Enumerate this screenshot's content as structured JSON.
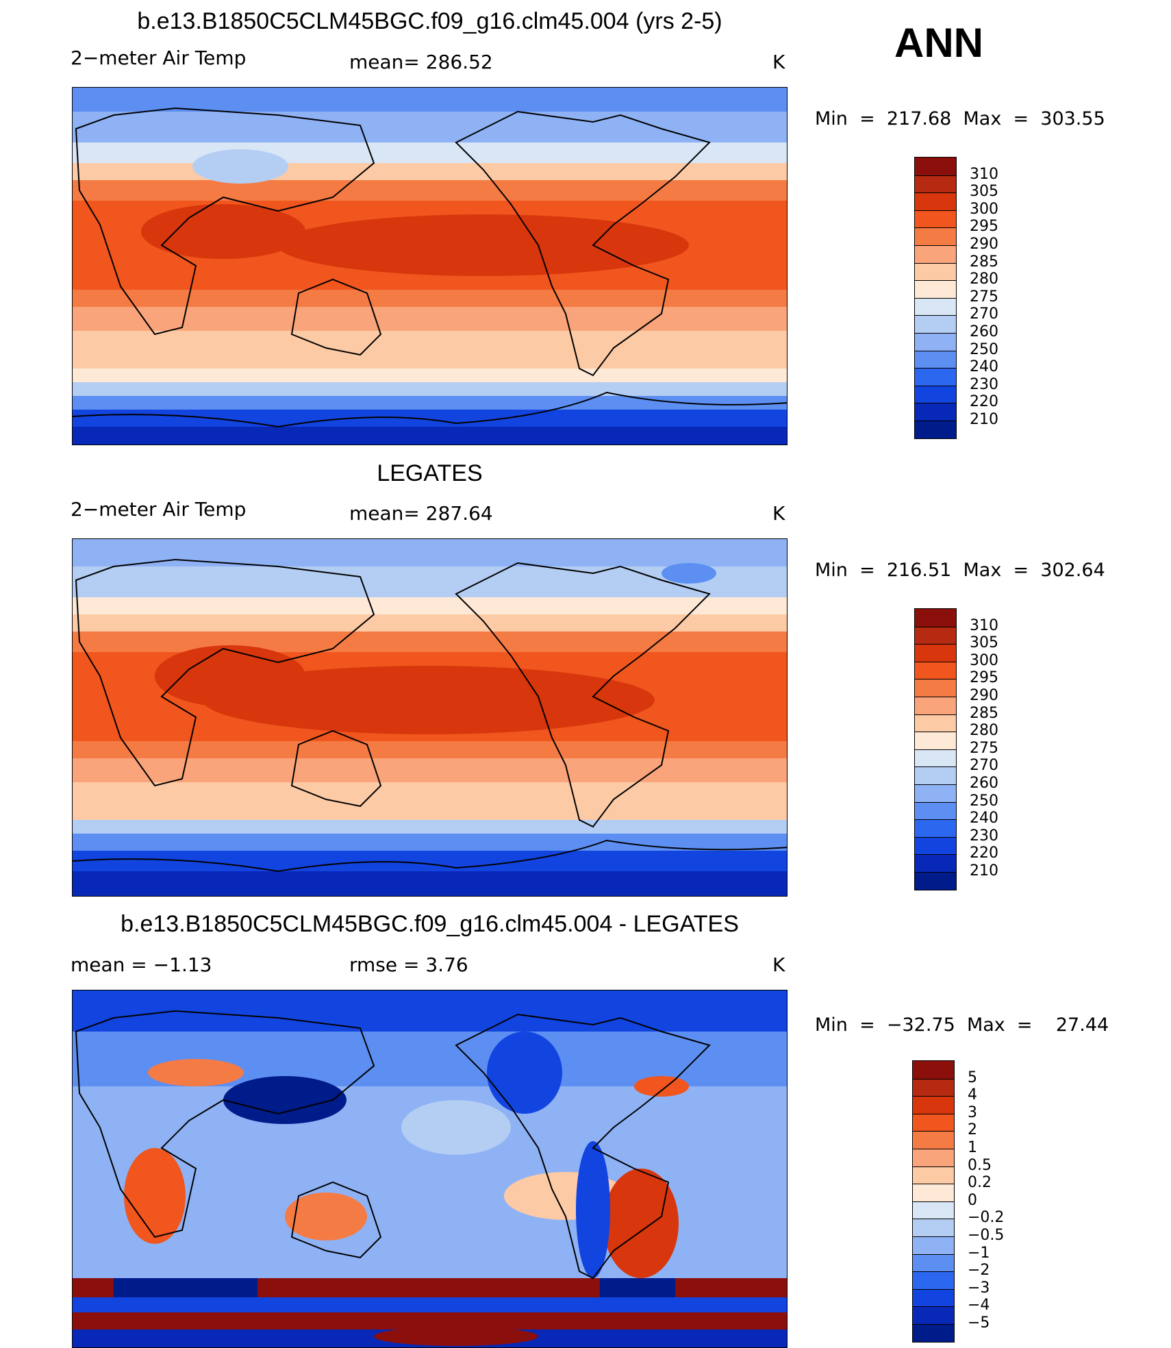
{
  "season": "ANN",
  "panels": [
    {
      "id": "model",
      "title": "b.e13.B1850C5CLM45BGC.f09_g16.clm45.004 (yrs 2-5)",
      "left_label": "2−meter Air Temp",
      "center_label": "mean=  286.52",
      "right_label": "K",
      "minmax": "Min  =  217.68  Max  =  303.55"
    },
    {
      "id": "obs",
      "title": "LEGATES",
      "left_label": "2−meter Air Temp",
      "center_label": "mean=  287.64",
      "right_label": "K",
      "minmax": "Min  =  216.51  Max  =  302.64"
    },
    {
      "id": "diff",
      "title": "b.e13.B1850C5CLM45BGC.f09_g16.clm45.004 - LEGATES",
      "left_label": "mean  =    −1.13",
      "center_label": "rmse  =     3.76",
      "right_label": "K",
      "minmax": "Min  =  −32.75  Max  =    27.44"
    }
  ],
  "legends": {
    "abs": {
      "labels": [
        "310",
        "305",
        "300",
        "295",
        "290",
        "285",
        "280",
        "275",
        "270",
        "260",
        "250",
        "240",
        "230",
        "220",
        "210"
      ],
      "colors": [
        "#8b0f0a",
        "#b52a10",
        "#d8360c",
        "#f0561d",
        "#f57b45",
        "#f9a47a",
        "#fdcaa6",
        "#fde9d6",
        "#d8e6f6",
        "#b4cdf2",
        "#8fb2f5",
        "#5d8ff2",
        "#2c67f0",
        "#1244e0",
        "#0828b8",
        "#001b8a"
      ]
    },
    "diff": {
      "labels": [
        "5",
        "4",
        "3",
        "2",
        "1",
        "0.5",
        "0.2",
        "0",
        "−0.2",
        "−0.5",
        "−1",
        "−2",
        "−3",
        "−4",
        "−5"
      ],
      "colors": [
        "#8b0f0a",
        "#b52a10",
        "#d8360c",
        "#f0561d",
        "#f57b45",
        "#f9a47a",
        "#fdcaa6",
        "#fde9d6",
        "#d8e6f6",
        "#b4cdf2",
        "#8fb2f5",
        "#5d8ff2",
        "#2c67f0",
        "#1244e0",
        "#0828b8",
        "#001b8a"
      ]
    }
  }
}
